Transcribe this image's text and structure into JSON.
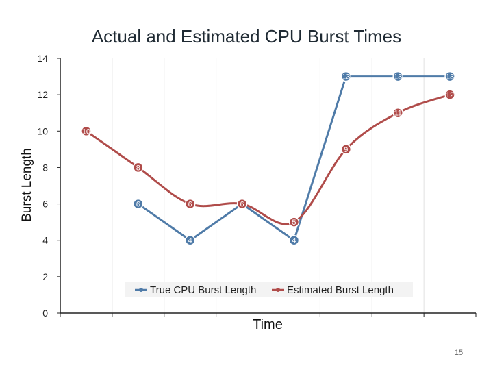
{
  "page_number": "15",
  "chart_data": {
    "type": "line",
    "title": "Actual and Estimated CPU Burst Times",
    "xlabel": "Time",
    "ylabel": "Burst Length",
    "ylim": [
      0,
      14
    ],
    "yticks": [
      0,
      2,
      4,
      6,
      8,
      10,
      12,
      14
    ],
    "x_positions": 8,
    "grid": "vertical",
    "legend_position": "bottom",
    "series": [
      {
        "name": "True CPU Burst Length",
        "color": "#4f7ba8",
        "x": [
          1,
          2,
          3,
          4,
          5,
          6,
          7
        ],
        "values": [
          6,
          4,
          6,
          4,
          13,
          13,
          13
        ]
      },
      {
        "name": "Estimated Burst Length",
        "color": "#b04c4a",
        "x": [
          0,
          1,
          2,
          3,
          4,
          5,
          6,
          7
        ],
        "values": [
          10,
          8,
          6,
          6,
          5,
          9,
          11,
          12
        ]
      }
    ]
  }
}
